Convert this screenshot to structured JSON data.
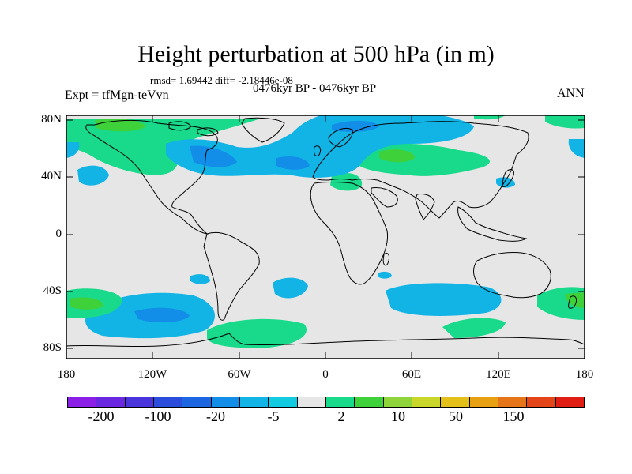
{
  "title": "Height perturbation at 500 hPa (in m)",
  "stats": "rmsd= 1.69442 diff= -2.18446e-08",
  "period": "0476kyr BP - 0476kyr BP",
  "experiment": "Expt = tfMgn-teVvn",
  "season": "ANN",
  "lat_labels": [
    "80N",
    "40N",
    "0",
    "40S",
    "80S"
  ],
  "lon_labels": [
    "180",
    "120W",
    "60W",
    "0",
    "60E",
    "120E",
    "180"
  ],
  "colorbar": {
    "colors": [
      "#8c1fe6",
      "#6a27e0",
      "#4a35dc",
      "#2a4ddc",
      "#1c66e2",
      "#138ee8",
      "#12b4e6",
      "#13cbe0",
      "#e6e6e6",
      "#19d98a",
      "#3fd13a",
      "#8fd43a",
      "#c9d62a",
      "#e4c01a",
      "#e6a012",
      "#e67418",
      "#e4461a",
      "#e01e14"
    ],
    "labels": [
      "-200",
      "-100",
      "-20",
      "-5",
      "2",
      "10",
      "50",
      "150"
    ]
  },
  "palette": {
    "land_background": "#e6e6e6",
    "negative_light": "#12b4e6",
    "negative_dark": "#138ee8",
    "positive_light": "#19d98a",
    "positive_dark": "#3fd13a"
  }
}
